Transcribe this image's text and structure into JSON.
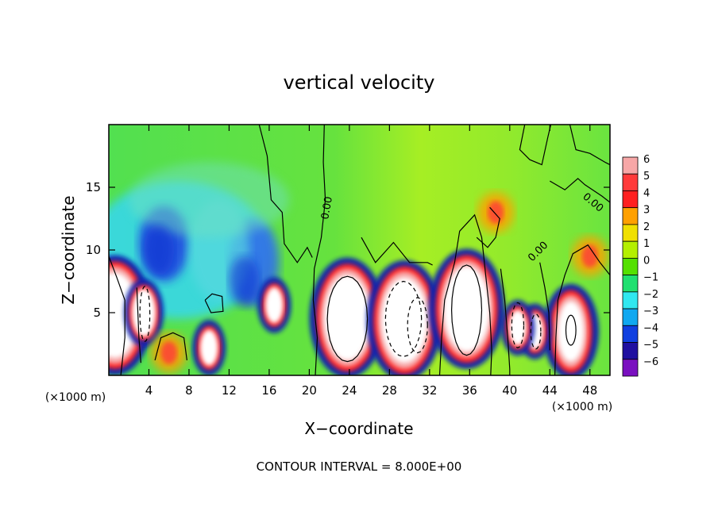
{
  "chart_data": {
    "type": "heatmap",
    "title": "vertical velocity",
    "xlabel": "X−coordinate",
    "ylabel": "Z−coordinate",
    "x_unit_left": "(×1000 m)",
    "x_unit_right": "(×1000 m)",
    "xlim": [
      0,
      50
    ],
    "ylim": [
      0,
      20
    ],
    "x_ticks": [
      4,
      8,
      12,
      16,
      20,
      24,
      28,
      32,
      36,
      40,
      44,
      48
    ],
    "y_ticks": [
      5,
      10,
      15
    ],
    "contour_interval_text": "CONTOUR INTERVAL = 8.000E+00",
    "contour_labels": [
      "0.00",
      "0.00",
      "0.00"
    ],
    "colorbar": {
      "levels": [
        6,
        5,
        4,
        3,
        2,
        1,
        0,
        -1,
        -2,
        -3,
        -4,
        -5,
        -6
      ],
      "colors": [
        "#f7a7a7",
        "#ff3a3a",
        "#ff2020",
        "#ffa000",
        "#f0e000",
        "#b4f000",
        "#54e000",
        "#20e070",
        "#30e8f0",
        "#10a8f0",
        "#1040e0",
        "#2010a0",
        "#7a10c0"
      ]
    },
    "features": [
      {
        "type": "updraft_core",
        "x": 0.6,
        "z": 4.8,
        "w": 30
      },
      {
        "type": "updraft_core",
        "x": 23.8,
        "z": 4.6,
        "w": 30
      },
      {
        "type": "updraft_core",
        "x": 29.5,
        "z": 4.4,
        "w": 30
      },
      {
        "type": "updraft_core",
        "x": 35.7,
        "z": 5.3,
        "w": 30
      },
      {
        "type": "updraft_core",
        "x": 46.1,
        "z": 3.5,
        "w": 20
      },
      {
        "type": "updraft",
        "x": 3.5,
        "z": 5.0,
        "w": 20
      },
      {
        "type": "updraft",
        "x": 10.0,
        "z": 2.2,
        "w": 10
      },
      {
        "type": "updraft",
        "x": 16.5,
        "z": 5.6,
        "w": 10
      },
      {
        "type": "updraft",
        "x": 42.5,
        "z": 3.5,
        "w": 10
      },
      {
        "type": "updraft",
        "x": 40.8,
        "z": 3.8,
        "w": 10
      },
      {
        "type": "warm_area",
        "x": 6.0,
        "z": 1.8,
        "w": 4
      },
      {
        "type": "warm_area",
        "x": 38.6,
        "z": 13.0,
        "w": 3
      },
      {
        "type": "warm_area",
        "x": 48.0,
        "z": 9.5,
        "w": 5
      },
      {
        "type": "downdraft",
        "x": 5.0,
        "z": 10.0,
        "w": -4
      },
      {
        "type": "downdraft",
        "x": 13.5,
        "z": 7.5,
        "w": -4
      }
    ]
  }
}
